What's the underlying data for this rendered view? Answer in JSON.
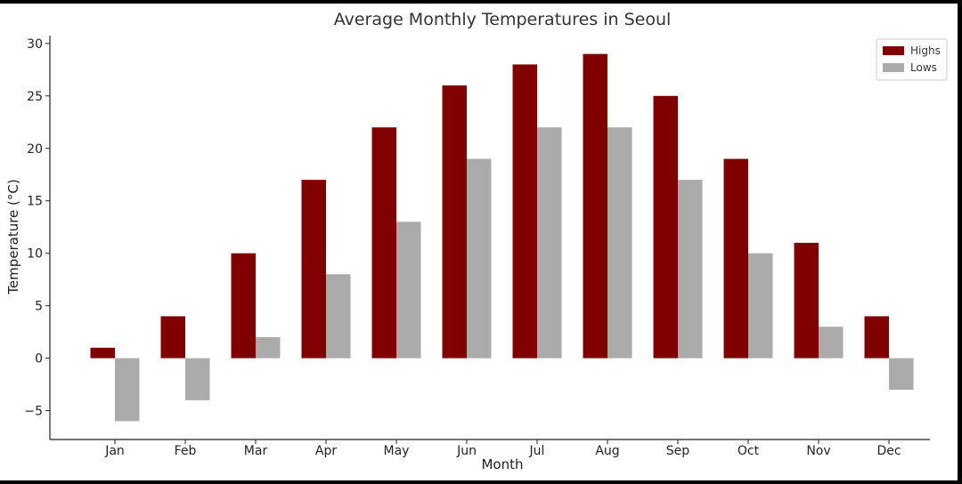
{
  "chart_data": {
    "type": "bar",
    "title": "Average Monthly Temperatures in Seoul",
    "xlabel": "Month",
    "ylabel": "Temperature (°C)",
    "categories": [
      "Jan",
      "Feb",
      "Mar",
      "Apr",
      "May",
      "Jun",
      "Jul",
      "Aug",
      "Sep",
      "Oct",
      "Nov",
      "Dec"
    ],
    "series": [
      {
        "name": "Highs",
        "color": "#800000",
        "values": [
          1,
          4,
          10,
          17,
          22,
          26,
          28,
          29,
          25,
          19,
          11,
          4
        ]
      },
      {
        "name": "Lows",
        "color": "#aaaaaa",
        "values": [
          -6,
          -4,
          2,
          8,
          13,
          19,
          22,
          22,
          17,
          10,
          3,
          -3
        ]
      }
    ],
    "ylim": [
      -7.75,
      30.75
    ],
    "yticks": [
      -5,
      0,
      5,
      10,
      15,
      20,
      25,
      30
    ],
    "ytick_labels": [
      "−5",
      "0",
      "5",
      "10",
      "15",
      "20",
      "25",
      "30"
    ],
    "grid": false,
    "legend_position": "top-right"
  }
}
